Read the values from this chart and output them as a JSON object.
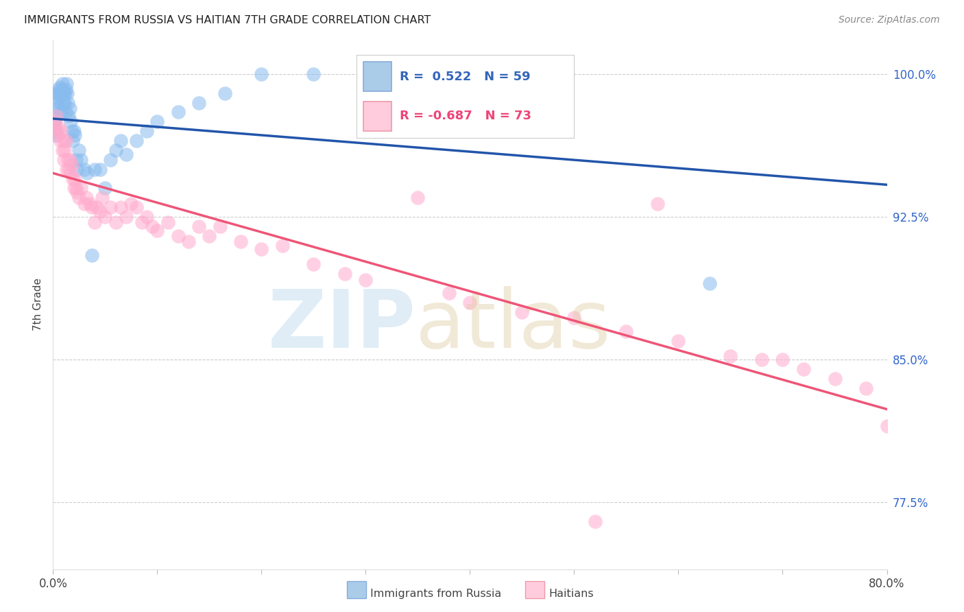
{
  "title": "IMMIGRANTS FROM RUSSIA VS HAITIAN 7TH GRADE CORRELATION CHART",
  "source": "Source: ZipAtlas.com",
  "ylabel": "7th Grade",
  "right_ytick_vals": [
    100.0,
    92.5,
    85.0,
    77.5
  ],
  "xmin": 0.0,
  "xmax": 80.0,
  "ymin": 74.0,
  "ymax": 101.8,
  "russia_color": "#88bbee",
  "haiti_color": "#ffaacc",
  "russia_line_color": "#2255aa",
  "haiti_line_color": "#ee5577",
  "legend_label1": "Immigrants from Russia",
  "legend_label2": "Haitians",
  "russia_R": 0.522,
  "russia_N": 59,
  "haiti_R": -0.687,
  "haiti_N": 73,
  "russia_x": [
    0.1,
    0.15,
    0.2,
    0.25,
    0.3,
    0.35,
    0.4,
    0.45,
    0.5,
    0.55,
    0.6,
    0.65,
    0.7,
    0.75,
    0.8,
    0.85,
    0.9,
    0.95,
    1.0,
    1.05,
    1.1,
    1.15,
    1.2,
    1.25,
    1.3,
    1.35,
    1.4,
    1.5,
    1.6,
    1.7,
    1.8,
    1.9,
    2.0,
    2.1,
    2.2,
    2.3,
    2.5,
    2.7,
    3.0,
    3.3,
    3.7,
    4.0,
    4.5,
    5.0,
    5.5,
    6.0,
    6.5,
    7.0,
    8.0,
    9.0,
    10.0,
    12.0,
    14.0,
    16.5,
    20.0,
    25.0,
    32.0,
    40.0,
    63.0
  ],
  "russia_y": [
    97.2,
    97.5,
    97.0,
    96.8,
    97.8,
    98.2,
    98.5,
    99.0,
    98.8,
    99.2,
    99.0,
    99.3,
    98.5,
    99.0,
    98.0,
    99.2,
    99.5,
    99.0,
    98.5,
    99.0,
    98.5,
    99.0,
    98.0,
    99.2,
    99.5,
    99.0,
    98.5,
    97.8,
    98.2,
    97.5,
    97.0,
    96.5,
    97.0,
    96.8,
    95.5,
    95.0,
    96.0,
    95.5,
    95.0,
    94.8,
    90.5,
    95.0,
    95.0,
    94.0,
    95.5,
    96.0,
    96.5,
    95.8,
    96.5,
    97.0,
    97.5,
    98.0,
    98.5,
    99.0,
    100.0,
    100.0,
    100.0,
    100.0,
    89.0
  ],
  "haiti_x": [
    0.1,
    0.2,
    0.3,
    0.4,
    0.5,
    0.6,
    0.7,
    0.8,
    0.9,
    1.0,
    1.0,
    1.1,
    1.2,
    1.3,
    1.4,
    1.5,
    1.6,
    1.7,
    1.8,
    1.9,
    2.0,
    2.1,
    2.2,
    2.3,
    2.5,
    2.7,
    3.0,
    3.2,
    3.5,
    3.7,
    4.0,
    4.2,
    4.5,
    4.7,
    5.0,
    5.5,
    6.0,
    6.5,
    7.0,
    7.5,
    8.0,
    8.5,
    9.0,
    9.5,
    10.0,
    11.0,
    12.0,
    13.0,
    14.0,
    15.0,
    16.0,
    18.0,
    20.0,
    22.0,
    25.0,
    28.0,
    30.0,
    35.0,
    38.0,
    40.0,
    45.0,
    50.0,
    55.0,
    58.0,
    60.0,
    65.0,
    68.0,
    70.0,
    72.0,
    75.0,
    78.0,
    80.0,
    52.0
  ],
  "haiti_y": [
    97.2,
    97.5,
    97.8,
    97.0,
    96.8,
    97.2,
    96.5,
    97.0,
    96.0,
    96.5,
    95.5,
    96.0,
    96.5,
    95.0,
    95.5,
    95.0,
    95.5,
    94.8,
    95.2,
    94.5,
    94.0,
    94.5,
    94.0,
    93.8,
    93.5,
    94.0,
    93.2,
    93.5,
    93.2,
    93.0,
    92.2,
    93.0,
    92.8,
    93.5,
    92.5,
    93.0,
    92.2,
    93.0,
    92.5,
    93.2,
    93.0,
    92.2,
    92.5,
    92.0,
    91.8,
    92.2,
    91.5,
    91.2,
    92.0,
    91.5,
    92.0,
    91.2,
    90.8,
    91.0,
    90.0,
    89.5,
    89.2,
    93.5,
    88.5,
    88.0,
    87.5,
    87.2,
    86.5,
    93.2,
    86.0,
    85.2,
    85.0,
    85.0,
    84.5,
    84.0,
    83.5,
    81.5,
    76.5
  ]
}
